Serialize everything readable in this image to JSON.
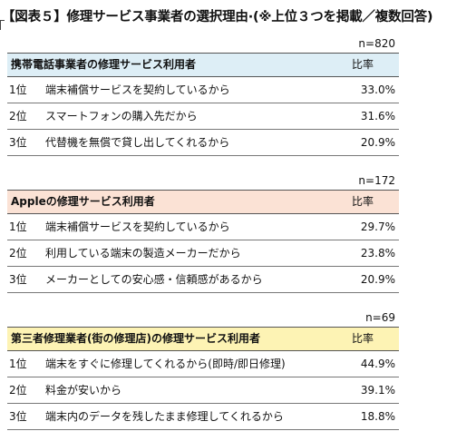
{
  "title": "【図表５】修理サービス事業者の選択理由·(※上位３つを掲載／複数回答)",
  "sections": [
    {
      "count": "n=820",
      "header": "携帯電話事業者の修理サービス利用者",
      "ratio_label": "比率",
      "header_color": "#ddeef6",
      "rows": [
        {
          "rank": "1位",
          "reason": "端末補償サービスを契約しているから",
          "pct": "33.0%"
        },
        {
          "rank": "2位",
          "reason": "スマートフォンの購入先だから",
          "pct": "31.6%"
        },
        {
          "rank": "3位",
          "reason": "代替機を無償で貸し出してくれるから",
          "pct": "20.9%"
        }
      ]
    },
    {
      "count": "n=172",
      "header": "Appleの修理サービス利用者",
      "ratio_label": "比率",
      "header_color": "#fbe2d5",
      "rows": [
        {
          "rank": "1位",
          "reason": "端末補償サービスを契約しているから",
          "pct": "29.7%"
        },
        {
          "rank": "2位",
          "reason": "利用している端末の製造メーカーだから",
          "pct": "23.8%"
        },
        {
          "rank": "3位",
          "reason": "メーカーとしての安心感・信頼感があるから",
          "pct": "20.9%"
        }
      ]
    },
    {
      "count": "n=69",
      "header": "第三者修理業者(街の修理店)の修理サービス利用者",
      "ratio_label": "比率",
      "header_color": "#fdf3b4",
      "rows": [
        {
          "rank": "1位",
          "reason": "端末をすぐに修理してくれるから(即時/即日修理)",
          "pct": "44.9%"
        },
        {
          "rank": "2位",
          "reason": "料金が安いから",
          "pct": "39.1%"
        },
        {
          "rank": "3位",
          "reason": "端末内のデータを残したまま修理してくれるから",
          "pct": "18.8%"
        }
      ]
    }
  ]
}
